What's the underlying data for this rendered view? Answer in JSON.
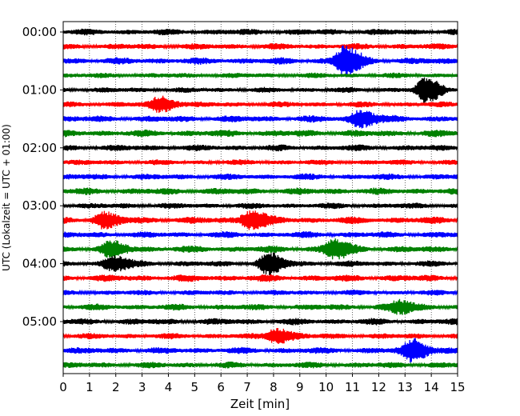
{
  "chart_data": {
    "type": "line",
    "title": "",
    "xlabel": "Zeit  [min]",
    "ylabel": "UTC (Lokalzeit = UTC + 01:00)",
    "xlim": [
      0,
      15
    ],
    "x_ticks": [
      "0",
      "1",
      "2",
      "3",
      "4",
      "5",
      "6",
      "7",
      "8",
      "9",
      "10",
      "11",
      "12",
      "13",
      "14",
      "15"
    ],
    "y_ticks": [
      "00:00",
      "01:00",
      "02:00",
      "03:00",
      "04:00",
      "05:00"
    ],
    "grid": "vertical-dotted",
    "colors": [
      "#000000",
      "#ff0000",
      "#0000ff",
      "#008000"
    ],
    "trace_interval_min": 15,
    "traces": [
      {
        "start": "00:00",
        "color": "#000000",
        "events": []
      },
      {
        "start": "00:15",
        "color": "#ff0000",
        "events": []
      },
      {
        "start": "00:30",
        "color": "#0000ff",
        "events": [
          {
            "t": 10.7,
            "amp": 17
          }
        ]
      },
      {
        "start": "00:45",
        "color": "#008000",
        "events": []
      },
      {
        "start": "01:00",
        "color": "#000000",
        "events": [
          {
            "t": 13.8,
            "amp": 14
          }
        ]
      },
      {
        "start": "01:15",
        "color": "#ff0000",
        "events": [
          {
            "t": 3.7,
            "amp": 9
          }
        ]
      },
      {
        "start": "01:30",
        "color": "#0000ff",
        "events": [
          {
            "t": 11.3,
            "amp": 10
          }
        ]
      },
      {
        "start": "01:45",
        "color": "#008000",
        "events": []
      },
      {
        "start": "02:00",
        "color": "#000000",
        "events": []
      },
      {
        "start": "02:15",
        "color": "#ff0000",
        "events": []
      },
      {
        "start": "02:30",
        "color": "#0000ff",
        "events": []
      },
      {
        "start": "02:45",
        "color": "#008000",
        "events": []
      },
      {
        "start": "03:00",
        "color": "#000000",
        "events": []
      },
      {
        "start": "03:15",
        "color": "#ff0000",
        "events": [
          {
            "t": 1.5,
            "amp": 8
          },
          {
            "t": 7.1,
            "amp": 11
          }
        ]
      },
      {
        "start": "03:30",
        "color": "#0000ff",
        "events": []
      },
      {
        "start": "03:45",
        "color": "#008000",
        "events": [
          {
            "t": 1.8,
            "amp": 8
          },
          {
            "t": 10.3,
            "amp": 11
          }
        ]
      },
      {
        "start": "04:00",
        "color": "#000000",
        "events": [
          {
            "t": 1.9,
            "amp": 9
          },
          {
            "t": 7.8,
            "amp": 12
          }
        ]
      },
      {
        "start": "04:15",
        "color": "#ff0000",
        "events": []
      },
      {
        "start": "04:30",
        "color": "#0000ff",
        "events": []
      },
      {
        "start": "04:45",
        "color": "#008000",
        "events": [
          {
            "t": 12.8,
            "amp": 7
          }
        ]
      },
      {
        "start": "05:00",
        "color": "#000000",
        "events": []
      },
      {
        "start": "05:15",
        "color": "#ff0000",
        "events": [
          {
            "t": 8.1,
            "amp": 9
          }
        ]
      },
      {
        "start": "05:30",
        "color": "#0000ff",
        "events": [
          {
            "t": 13.3,
            "amp": 13
          }
        ]
      },
      {
        "start": "05:45",
        "color": "#008000",
        "events": []
      }
    ]
  }
}
